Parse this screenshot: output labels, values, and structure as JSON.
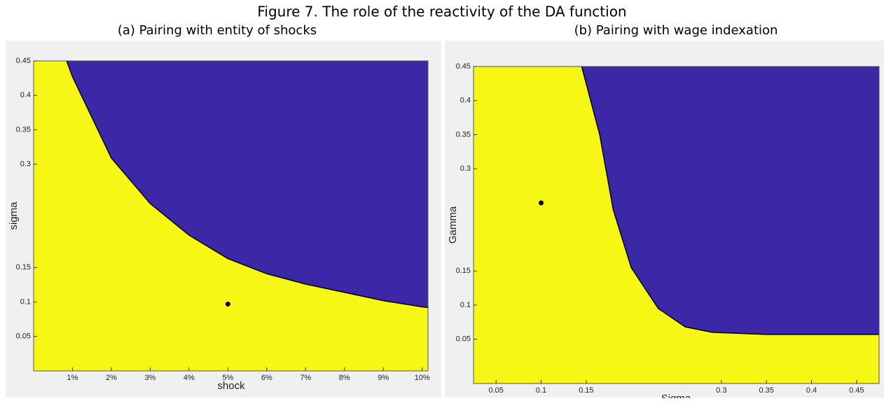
{
  "title": "Figure 7. The role of the reactivity of the DA function",
  "chart_data": [
    {
      "type": "region",
      "subtitle": "(a) Pairing with entity of shocks",
      "xlabel": "shock",
      "ylabel": "sigma",
      "xlim": [
        0,
        10.15
      ],
      "ylim": [
        0,
        0.45
      ],
      "xticks": [
        {
          "value": 1,
          "label": "1%"
        },
        {
          "value": 2,
          "label": "2%"
        },
        {
          "value": 3,
          "label": "3%"
        },
        {
          "value": 4,
          "label": "4%"
        },
        {
          "value": 5,
          "label": "5%"
        },
        {
          "value": 6,
          "label": "6%"
        },
        {
          "value": 7,
          "label": "7%"
        },
        {
          "value": 8,
          "label": "8%"
        },
        {
          "value": 9,
          "label": "9%"
        },
        {
          "value": 10,
          "label": "10%"
        }
      ],
      "yticks": [
        0.05,
        0.1,
        0.15,
        0.3,
        0.35,
        0.4,
        0.45
      ],
      "boundary": {
        "x": [
          0.85,
          1,
          2,
          3,
          4,
          5,
          6,
          7,
          8,
          9,
          10,
          10.15
        ],
        "values": [
          0.45,
          0.427,
          0.309,
          0.243,
          0.197,
          0.163,
          0.141,
          0.126,
          0.114,
          0.102,
          0.093,
          0.092
        ]
      },
      "point": {
        "x": 5,
        "value": 0.097
      },
      "below_color": "#f7f716",
      "above_color": "#3c28a6",
      "point_color": "#000000"
    },
    {
      "type": "region",
      "subtitle": "(b) Pairing with wage indexation",
      "xlabel": "Sigma",
      "ylabel": "Gamma",
      "xlim": [
        0.025,
        0.475
      ],
      "ylim": [
        -0.015,
        0.45
      ],
      "xticks": [
        0.05,
        0.1,
        0.15,
        0.3,
        0.35,
        0.4,
        0.45
      ],
      "yticks": [
        0.05,
        0.1,
        0.15,
        0.3,
        0.35,
        0.4,
        0.45
      ],
      "boundary": {
        "x": [
          0.145,
          0.165,
          0.18,
          0.2,
          0.23,
          0.26,
          0.29,
          0.35,
          0.475
        ],
        "values": [
          0.45,
          0.35,
          0.24,
          0.155,
          0.095,
          0.068,
          0.06,
          0.057,
          0.057
        ]
      },
      "point": {
        "x": 0.1,
        "value": 0.25
      },
      "below_color": "#f7f716",
      "above_color": "#3c28a6",
      "point_color": "#000000"
    }
  ]
}
